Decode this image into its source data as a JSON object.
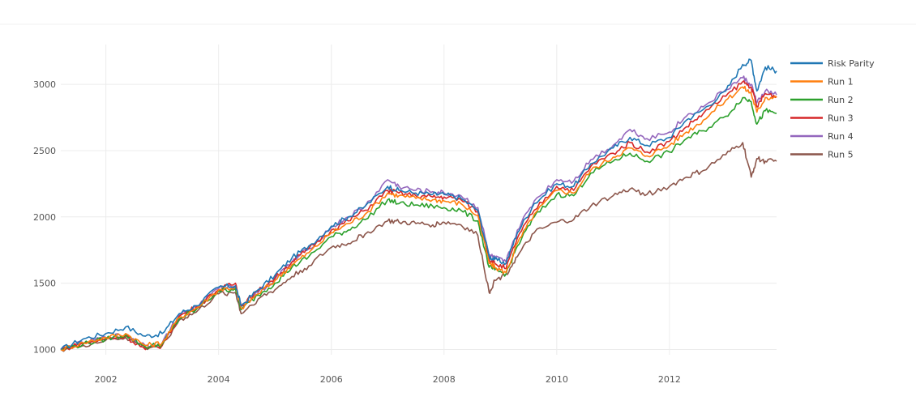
{
  "chart_data": {
    "type": "line",
    "title": "",
    "xlabel": "",
    "ylabel": "",
    "xlim": [
      2001.2,
      2013.9
    ],
    "ylim": [
      960,
      3300
    ],
    "x_ticks": [
      2002,
      2004,
      2006,
      2008,
      2010,
      2012
    ],
    "x_tick_labels": [
      "2002",
      "2004",
      "2006",
      "2008",
      "2010",
      "2012"
    ],
    "y_ticks": [
      1000,
      1500,
      2000,
      2500,
      3000
    ],
    "y_tick_labels": [
      "1000",
      "1500",
      "2000",
      "2500",
      "3000"
    ],
    "grid": true,
    "legend_position": "right",
    "x": [
      2001.2,
      2001.6,
      2002.0,
      2002.35,
      2002.7,
      2003.0,
      2003.3,
      2003.6,
      2004.0,
      2004.3,
      2004.4,
      2004.7,
      2005.0,
      2005.3,
      2005.6,
      2006.0,
      2006.3,
      2006.6,
      2007.0,
      2007.2,
      2007.5,
      2007.8,
      2008.0,
      2008.3,
      2008.6,
      2008.8,
      2008.9,
      2009.1,
      2009.3,
      2009.6,
      2010.0,
      2010.3,
      2010.6,
      2011.0,
      2011.3,
      2011.6,
      2012.0,
      2012.3,
      2012.6,
      2013.0,
      2013.3,
      2013.45,
      2013.55,
      2013.7,
      2013.9
    ],
    "series": [
      {
        "name": "Risk Parity",
        "color": "#1f77b4",
        "values": [
          1000,
          1080,
          1120,
          1170,
          1100,
          1120,
          1270,
          1330,
          1470,
          1480,
          1330,
          1450,
          1560,
          1690,
          1780,
          1930,
          2000,
          2080,
          2230,
          2200,
          2180,
          2170,
          2170,
          2140,
          2050,
          1700,
          1680,
          1650,
          1880,
          2100,
          2250,
          2230,
          2400,
          2520,
          2600,
          2540,
          2600,
          2730,
          2810,
          2950,
          3150,
          3180,
          2950,
          3130,
          3100
        ]
      },
      {
        "name": "Run 1",
        "color": "#ff7f0e",
        "values": [
          1000,
          1050,
          1090,
          1120,
          1030,
          1050,
          1240,
          1310,
          1450,
          1470,
          1310,
          1420,
          1520,
          1640,
          1730,
          1880,
          1950,
          2020,
          2180,
          2160,
          2140,
          2130,
          2120,
          2100,
          2010,
          1650,
          1620,
          1580,
          1800,
          2020,
          2200,
          2180,
          2350,
          2450,
          2520,
          2460,
          2540,
          2640,
          2730,
          2880,
          2980,
          2930,
          2790,
          2900,
          2900
        ]
      },
      {
        "name": "Run 2",
        "color": "#2ca02c",
        "values": [
          1000,
          1040,
          1080,
          1110,
          1020,
          1040,
          1230,
          1300,
          1440,
          1460,
          1300,
          1410,
          1500,
          1620,
          1700,
          1850,
          1900,
          1980,
          2130,
          2100,
          2090,
          2080,
          2070,
          2050,
          1970,
          1620,
          1600,
          1570,
          1780,
          2000,
          2170,
          2160,
          2330,
          2420,
          2480,
          2420,
          2490,
          2590,
          2650,
          2760,
          2900,
          2870,
          2700,
          2800,
          2780
        ]
      },
      {
        "name": "Run 3",
        "color": "#d62728",
        "values": [
          1000,
          1045,
          1080,
          1100,
          1000,
          1030,
          1250,
          1320,
          1450,
          1500,
          1330,
          1440,
          1540,
          1660,
          1760,
          1900,
          1970,
          2050,
          2200,
          2180,
          2160,
          2150,
          2150,
          2130,
          2040,
          1680,
          1650,
          1610,
          1840,
          2050,
          2230,
          2200,
          2380,
          2480,
          2560,
          2490,
          2570,
          2680,
          2780,
          2910,
          3020,
          2980,
          2830,
          2930,
          2910
        ]
      },
      {
        "name": "Run 4",
        "color": "#9467bd",
        "values": [
          1000,
          1050,
          1090,
          1110,
          1030,
          1050,
          1260,
          1320,
          1460,
          1480,
          1320,
          1430,
          1530,
          1660,
          1760,
          1920,
          2000,
          2080,
          2280,
          2230,
          2200,
          2190,
          2180,
          2160,
          2070,
          1710,
          1690,
          1660,
          1900,
          2120,
          2280,
          2270,
          2430,
          2540,
          2660,
          2590,
          2640,
          2760,
          2830,
          2960,
          3050,
          3000,
          2860,
          2950,
          2920
        ]
      },
      {
        "name": "Run 5",
        "color": "#8c564b",
        "values": [
          1000,
          1030,
          1070,
          1090,
          1010,
          1030,
          1220,
          1280,
          1420,
          1430,
          1270,
          1380,
          1450,
          1550,
          1630,
          1770,
          1800,
          1870,
          1970,
          1960,
          1950,
          1940,
          1960,
          1940,
          1860,
          1430,
          1520,
          1570,
          1700,
          1880,
          1960,
          1980,
          2080,
          2160,
          2210,
          2170,
          2230,
          2300,
          2350,
          2470,
          2560,
          2300,
          2440,
          2420,
          2420
        ]
      }
    ]
  }
}
